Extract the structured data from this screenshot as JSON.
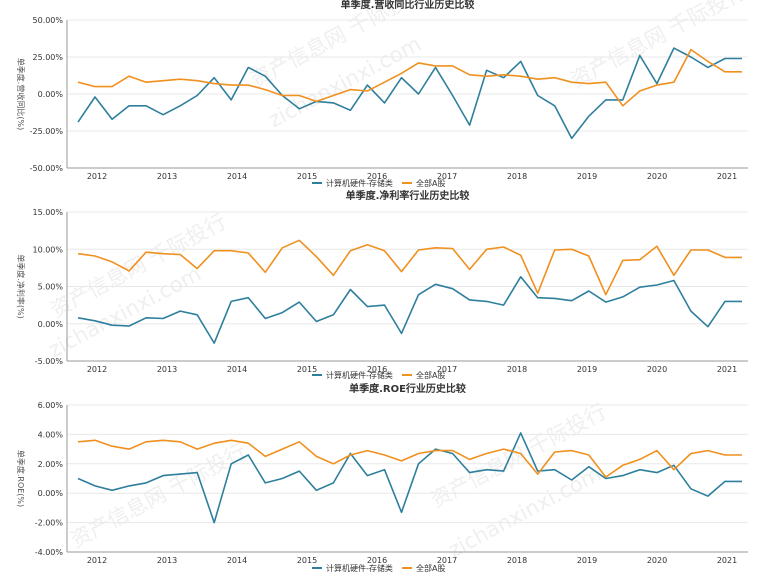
{
  "watermark": {
    "cn": "资产信息网 千际投行",
    "en": "zichanxinxi.com"
  },
  "colors": {
    "series1": "#2e7f9d",
    "series2": "#f0901e",
    "grid": "#e8e8e8",
    "axis": "#999999",
    "text": "#333333"
  },
  "x_ticks": [
    "2012",
    "2013",
    "2014",
    "2015",
    "2016",
    "2017",
    "2018",
    "2019",
    "2020",
    "2021"
  ],
  "chart_data": [
    {
      "type": "line",
      "title": "单季度.营收同比行业历史比较",
      "ylabel": "单季度.营收同比(%)",
      "ylim": [
        -50,
        50
      ],
      "yticks": [
        -50,
        -25,
        0,
        25,
        50
      ],
      "ytick_labels": [
        "-50.00%",
        "-25.00%",
        "0.00%",
        "25.00%",
        "50.00%"
      ],
      "x": [
        "2011Q3",
        "2011Q4",
        "2012Q1",
        "2012Q2",
        "2012Q3",
        "2012Q4",
        "2013Q1",
        "2013Q2",
        "2013Q3",
        "2013Q4",
        "2014Q1",
        "2014Q2",
        "2014Q3",
        "2014Q4",
        "2015Q1",
        "2015Q2",
        "2015Q3",
        "2015Q4",
        "2016Q1",
        "2016Q2",
        "2016Q3",
        "2016Q4",
        "2017Q1",
        "2017Q2",
        "2017Q3",
        "2017Q4",
        "2018Q1",
        "2018Q2",
        "2018Q3",
        "2018Q4",
        "2019Q1",
        "2019Q2",
        "2019Q3",
        "2019Q4",
        "2020Q1",
        "2020Q2",
        "2020Q3",
        "2020Q4",
        "2021Q1",
        "2021Q2"
      ],
      "legend": [
        "计算机硬件-存储类",
        "全部A股"
      ],
      "legend_position": "bottom-center",
      "series": [
        {
          "name": "计算机硬件-存储类",
          "values": [
            -19,
            -2,
            -17,
            -8,
            -8,
            -14,
            -8,
            -1,
            11,
            -4,
            18,
            12,
            -1,
            -10,
            -5,
            -6,
            -11,
            6,
            -6,
            11,
            0,
            18,
            -1,
            -21,
            16,
            11,
            22,
            -1,
            -8,
            -30,
            -15,
            -4,
            -4,
            26,
            7,
            31,
            25,
            18,
            24,
            24
          ]
        },
        {
          "name": "全部A股",
          "values": [
            8,
            5,
            5,
            12,
            8,
            9,
            10,
            9,
            7,
            6,
            6,
            3,
            -1,
            -1,
            -5,
            -1,
            3,
            2,
            8,
            14,
            21,
            19,
            19,
            13,
            12,
            13,
            12,
            10,
            11,
            8,
            7,
            8,
            -8,
            2,
            6,
            8,
            30,
            22,
            15,
            15
          ]
        }
      ]
    },
    {
      "type": "line",
      "title": "单季度.净利率行业历史比较",
      "ylabel": "单季度.净利率(%)",
      "ylim": [
        -5,
        15
      ],
      "yticks": [
        -5,
        0,
        5,
        10,
        15
      ],
      "ytick_labels": [
        "-5.00%",
        "0.00%",
        "5.00%",
        "10.00%",
        "15.00%"
      ],
      "x": [
        "2011Q3",
        "2011Q4",
        "2012Q1",
        "2012Q2",
        "2012Q3",
        "2012Q4",
        "2013Q1",
        "2013Q2",
        "2013Q3",
        "2013Q4",
        "2014Q1",
        "2014Q2",
        "2014Q3",
        "2014Q4",
        "2015Q1",
        "2015Q2",
        "2015Q3",
        "2015Q4",
        "2016Q1",
        "2016Q2",
        "2016Q3",
        "2016Q4",
        "2017Q1",
        "2017Q2",
        "2017Q3",
        "2017Q4",
        "2018Q1",
        "2018Q2",
        "2018Q3",
        "2018Q4",
        "2019Q1",
        "2019Q2",
        "2019Q3",
        "2019Q4",
        "2020Q1",
        "2020Q2",
        "2020Q3",
        "2020Q4",
        "2021Q1",
        "2021Q2"
      ],
      "legend": [
        "计算机硬件-存储类",
        "全部A股"
      ],
      "legend_position": "bottom-center",
      "series": [
        {
          "name": "计算机硬件-存储类",
          "values": [
            0.8,
            0.4,
            -0.2,
            -0.3,
            0.8,
            0.7,
            1.7,
            1.2,
            -2.6,
            3.0,
            3.5,
            0.7,
            1.5,
            2.9,
            0.3,
            1.2,
            4.6,
            2.3,
            2.5,
            -1.3,
            3.9,
            5.3,
            4.7,
            3.2,
            3.0,
            2.5,
            6.3,
            3.5,
            3.4,
            3.1,
            4.4,
            2.9,
            3.6,
            4.9,
            5.2,
            5.8,
            1.7,
            -0.4,
            3.0,
            3.0
          ]
        },
        {
          "name": "全部A股",
          "values": [
            9.4,
            9.1,
            8.3,
            7.1,
            9.6,
            9.4,
            9.3,
            7.4,
            9.8,
            9.8,
            9.5,
            6.9,
            10.2,
            11.2,
            9.0,
            6.5,
            9.8,
            10.6,
            9.8,
            7.0,
            9.9,
            10.2,
            10.1,
            7.3,
            10.0,
            10.3,
            9.2,
            4.1,
            9.9,
            10.0,
            9.1,
            3.9,
            8.5,
            8.6,
            10.4,
            6.5,
            9.9,
            9.9,
            8.9,
            8.9
          ]
        }
      ]
    },
    {
      "type": "line",
      "title": "单季度.ROE行业历史比较",
      "ylabel": "单季度.ROE(%)",
      "ylim": [
        -4,
        6
      ],
      "yticks": [
        -4,
        -2,
        0,
        2,
        4,
        6
      ],
      "ytick_labels": [
        "-4.00%",
        "-2.00%",
        "0.00%",
        "2.00%",
        "4.00%",
        "6.00%"
      ],
      "x": [
        "2011Q3",
        "2011Q4",
        "2012Q1",
        "2012Q2",
        "2012Q3",
        "2012Q4",
        "2013Q1",
        "2013Q2",
        "2013Q3",
        "2013Q4",
        "2014Q1",
        "2014Q2",
        "2014Q3",
        "2014Q4",
        "2015Q1",
        "2015Q2",
        "2015Q3",
        "2015Q4",
        "2016Q1",
        "2016Q2",
        "2016Q3",
        "2016Q4",
        "2017Q1",
        "2017Q2",
        "2017Q3",
        "2017Q4",
        "2018Q1",
        "2018Q2",
        "2018Q3",
        "2018Q4",
        "2019Q1",
        "2019Q2",
        "2019Q3",
        "2019Q4",
        "2020Q1",
        "2020Q2",
        "2020Q3",
        "2020Q4",
        "2021Q1",
        "2021Q2"
      ],
      "legend": [
        "计算机硬件-存储类",
        "全部A股"
      ],
      "legend_position": "bottom-center",
      "series": [
        {
          "name": "计算机硬件-存储类",
          "values": [
            1.0,
            0.5,
            0.2,
            0.5,
            0.7,
            1.2,
            1.3,
            1.4,
            -2.0,
            2.0,
            2.6,
            0.7,
            1.0,
            1.5,
            0.2,
            0.7,
            2.7,
            1.2,
            1.6,
            -1.3,
            2.0,
            3.0,
            2.7,
            1.4,
            1.6,
            1.5,
            4.1,
            1.5,
            1.6,
            0.9,
            1.8,
            1.0,
            1.2,
            1.6,
            1.4,
            1.9,
            0.3,
            -0.2,
            0.8,
            0.8
          ]
        },
        {
          "name": "全部A股",
          "values": [
            3.5,
            3.6,
            3.2,
            3.0,
            3.5,
            3.6,
            3.5,
            3.0,
            3.4,
            3.6,
            3.4,
            2.5,
            3.0,
            3.5,
            2.5,
            2.0,
            2.6,
            2.9,
            2.6,
            2.2,
            2.7,
            2.9,
            2.9,
            2.3,
            2.7,
            3.0,
            2.7,
            1.3,
            2.8,
            2.9,
            2.6,
            1.1,
            1.9,
            2.3,
            2.9,
            1.6,
            2.7,
            2.9,
            2.6,
            2.6
          ]
        }
      ]
    }
  ]
}
